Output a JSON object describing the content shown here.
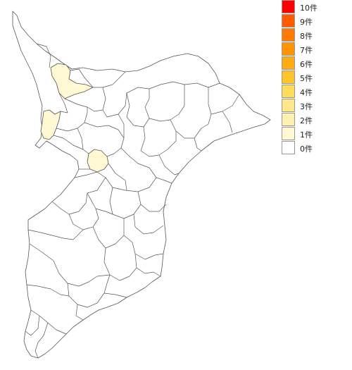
{
  "legend": {
    "items": [
      {
        "label": "10件",
        "color": "#ff0000"
      },
      {
        "label": "9件",
        "color": "#ff5a00"
      },
      {
        "label": "8件",
        "color": "#ff7a00"
      },
      {
        "label": "7件",
        "color": "#ff9400"
      },
      {
        "label": "6件",
        "color": "#ffac14"
      },
      {
        "label": "5件",
        "color": "#ffc42a"
      },
      {
        "label": "4件",
        "color": "#ffdc5a"
      },
      {
        "label": "3件",
        "color": "#ffe88a"
      },
      {
        "label": "2件",
        "color": "#fff0b0"
      },
      {
        "label": "1件",
        "color": "#fff8d2"
      },
      {
        "label": "0件",
        "color": "#ffffff"
      }
    ]
  },
  "map": {
    "base_color": "#ffffff",
    "highlight_color": "#fff8d2",
    "highlighted_count": 3
  }
}
